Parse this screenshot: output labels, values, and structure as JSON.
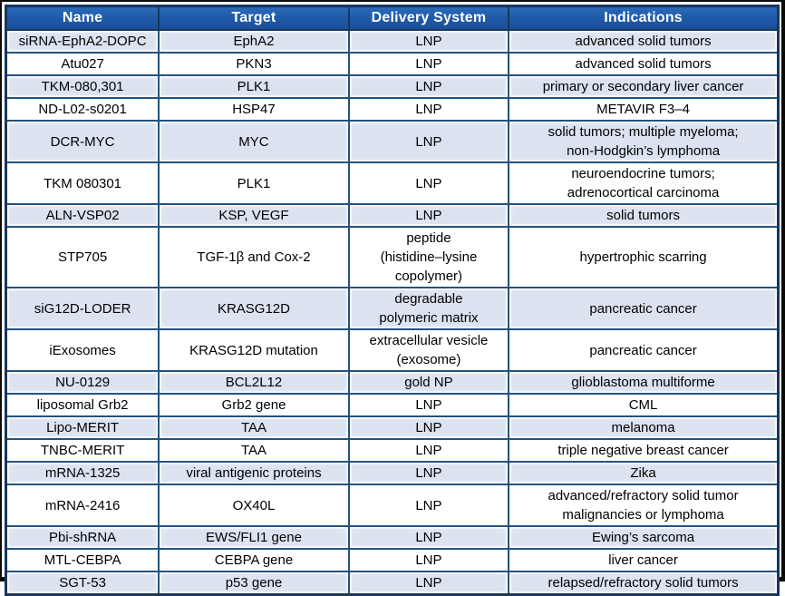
{
  "table": {
    "columns": [
      {
        "key": "name",
        "label": "Name"
      },
      {
        "key": "target",
        "label": "Target"
      },
      {
        "key": "delivery",
        "label": "Delivery System"
      },
      {
        "key": "indications",
        "label": "Indications"
      }
    ],
    "rows": [
      {
        "name": "siRNA-EphA2-DOPC",
        "target": "EphA2",
        "delivery": "LNP",
        "indications": "advanced solid tumors"
      },
      {
        "name": "Atu027",
        "target": "PKN3",
        "delivery": "LNP",
        "indications": "advanced solid tumors"
      },
      {
        "name": "TKM-080,301",
        "target": "PLK1",
        "delivery": "LNP",
        "indications": "primary or secondary liver cancer"
      },
      {
        "name": "ND-L02-s0201",
        "target": "HSP47",
        "delivery": "LNP",
        "indications": "METAVIR F3–4"
      },
      {
        "name": "DCR-MYC",
        "target": "MYC",
        "delivery": "LNP",
        "indications": "solid tumors; multiple myeloma;\nnon-Hodgkin’s lymphoma"
      },
      {
        "name": "TKM 080301",
        "target": "PLK1",
        "delivery": "LNP",
        "indications": "neuroendocrine tumors;\nadrenocortical carcinoma"
      },
      {
        "name": "ALN-VSP02",
        "target": "KSP, VEGF",
        "delivery": "LNP",
        "indications": "solid tumors"
      },
      {
        "name": "STP705",
        "target": "TGF-1β and Cox-2",
        "delivery": "peptide\n(histidine–lysine\ncopolymer)",
        "indications": "hypertrophic scarring"
      },
      {
        "name": "siG12D-LODER",
        "target": "KRASG12D",
        "delivery": "degradable\npolymeric matrix",
        "indications": "pancreatic cancer"
      },
      {
        "name": "iExosomes",
        "target": "KRASG12D mutation",
        "delivery": "extracellular vesicle\n(exosome)",
        "indications": "pancreatic cancer"
      },
      {
        "name": "NU-0129",
        "target": "BCL2L12",
        "delivery": "gold NP",
        "indications": "glioblastoma multiforme"
      },
      {
        "name": "liposomal Grb2",
        "target": "Grb2 gene",
        "delivery": "LNP",
        "indications": "CML"
      },
      {
        "name": "Lipo-MERIT",
        "target": "TAA",
        "delivery": "LNP",
        "indications": "melanoma"
      },
      {
        "name": "TNBC-MERIT",
        "target": "TAA",
        "delivery": "LNP",
        "indications": "triple negative breast cancer"
      },
      {
        "name": "mRNA-1325",
        "target": "viral antigenic proteins",
        "delivery": "LNP",
        "indications": "Zika"
      },
      {
        "name": "mRNA-2416",
        "target": "OX40L",
        "delivery": "LNP",
        "indications": "advanced/refractory solid tumor\nmalignancies or lymphoma"
      },
      {
        "name": "Pbi-shRNA",
        "target": "EWS/FLI1 gene",
        "delivery": "LNP",
        "indications": "Ewing’s sarcoma"
      },
      {
        "name": "MTL-CEBPA",
        "target": "CEBPA gene",
        "delivery": "LNP",
        "indications": "liver cancer"
      },
      {
        "name": "SGT-53",
        "target": "p53 gene",
        "delivery": "LNP",
        "indications": "relapsed/refractory solid tumors"
      }
    ],
    "column_widths_percent": [
      19.8,
      24.6,
      20.7,
      34.9
    ]
  },
  "colors": {
    "header_bg": "#1f5aa8",
    "header_text": "#ffffff",
    "shaded_row_bg": "#dce3f0",
    "plain_row_bg": "#ffffff",
    "grid_line": "#24527f",
    "table_border": "#17375d",
    "outer_frame": "#0a0a0a",
    "body_text": "#000000"
  }
}
